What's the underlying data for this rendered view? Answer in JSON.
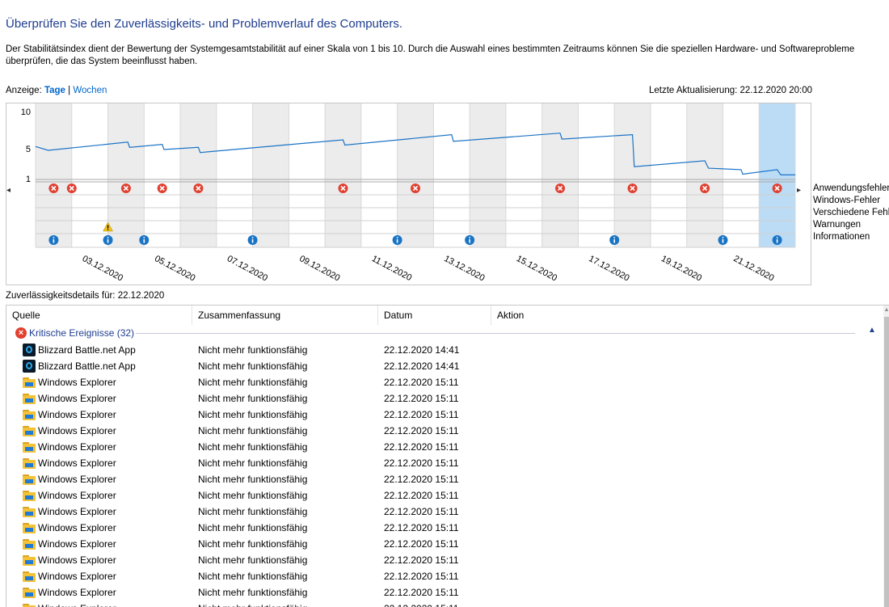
{
  "header": {
    "title": "Überprüfen Sie den Zuverlässigkeits- und Problemverlauf des Computers.",
    "description": "Der Stabilitätsindex dient der Bewertung der Systemgesamtstabilität auf einer Skala von 1 bis 10. Durch die Auswahl eines bestimmten Zeitraums können Sie die speziellen Hardware- und Softwareprobleme überprüfen, die das System beeinflusst haben."
  },
  "view": {
    "label": "Anzeige:",
    "days": "Tage",
    "separator": "|",
    "weeks": "Wochen",
    "last_update": "Letzte Aktualisierung: 22.12.2020 20:00"
  },
  "chart": {
    "nav_left": "◂",
    "nav_right": "▸",
    "y_ticks": [
      "10",
      "5",
      "1"
    ],
    "row_labels": [
      "Anwendungsfehler",
      "Windows-Fehler",
      "Verschiedene Fehler",
      "Warnungen",
      "Informationen"
    ],
    "date_labels": [
      "03.12.2020",
      "05.12.2020",
      "07.12.2020",
      "09.12.2020",
      "11.12.2020",
      "13.12.2020",
      "15.12.2020",
      "17.12.2020",
      "19.12.2020",
      "21.12.2020"
    ],
    "colors": {
      "line": "#1a73c6",
      "shaded": "#ececec",
      "selected": "#bcdcf5",
      "error": "#e04131",
      "warning": "#f2c11b",
      "info": "#1a74c5"
    }
  },
  "chart_data": {
    "type": "line",
    "title": "Stabilitätsindex",
    "x_days": [
      "02.12.2020",
      "03.12.2020",
      "04.12.2020",
      "05.12.2020",
      "06.12.2020",
      "07.12.2020",
      "08.12.2020",
      "09.12.2020",
      "10.12.2020",
      "11.12.2020",
      "12.12.2020",
      "13.12.2020",
      "14.12.2020",
      "15.12.2020",
      "16.12.2020",
      "17.12.2020",
      "18.12.2020",
      "19.12.2020",
      "20.12.2020",
      "21.12.2020",
      "22.12.2020"
    ],
    "ylim": [
      1,
      10
    ],
    "y_ticks": [
      10,
      5,
      1
    ],
    "stability_points": [
      {
        "day": 0.0,
        "value": 5.3
      },
      {
        "day": 0.35,
        "value": 4.8
      },
      {
        "day": 2.55,
        "value": 5.9
      },
      {
        "day": 2.6,
        "value": 5.2
      },
      {
        "day": 3.5,
        "value": 5.6
      },
      {
        "day": 3.55,
        "value": 4.9
      },
      {
        "day": 4.5,
        "value": 5.2
      },
      {
        "day": 4.55,
        "value": 4.5
      },
      {
        "day": 8.5,
        "value": 6.2
      },
      {
        "day": 8.55,
        "value": 5.5
      },
      {
        "day": 11.5,
        "value": 6.9
      },
      {
        "day": 11.55,
        "value": 6.0
      },
      {
        "day": 14.5,
        "value": 7.1
      },
      {
        "day": 14.55,
        "value": 6.3
      },
      {
        "day": 16.5,
        "value": 6.9
      },
      {
        "day": 16.55,
        "value": 2.6
      },
      {
        "day": 18.5,
        "value": 3.4
      },
      {
        "day": 18.6,
        "value": 2.4
      },
      {
        "day": 19.5,
        "value": 2.2
      },
      {
        "day": 19.55,
        "value": 1.6
      },
      {
        "day": 20.5,
        "value": 2.2
      },
      {
        "day": 20.6,
        "value": 1.5
      },
      {
        "day": 21.0,
        "value": 1.5
      }
    ],
    "shaded_days": [
      0,
      2,
      4,
      6,
      8,
      10,
      12,
      14,
      16,
      18
    ],
    "selected_day": 20,
    "events": {
      "application_errors": [
        0,
        0.5,
        2,
        3,
        4,
        8,
        10,
        14,
        16,
        18,
        20
      ],
      "windows_errors": [],
      "misc_errors": [],
      "warnings": [
        1.5
      ],
      "information": [
        0,
        1.5,
        2.5,
        5.5,
        9.5,
        11.5,
        15.5,
        18.5,
        20
      ]
    }
  },
  "details": {
    "label": "Zuverlässigkeitsdetails für: 22.12.2020",
    "columns": [
      "Quelle",
      "Zusammenfassung",
      "Datum",
      "Aktion"
    ],
    "sort_indicator": "^",
    "group_icon": "x-icon",
    "group_label": "Kritische Ereignisse (32)",
    "group_toggle": "▲",
    "rows": [
      {
        "source": "Blizzard Battle.net App",
        "summary": "Nicht mehr funktionsfähig",
        "date": "22.12.2020 14:41",
        "icon": "battlenet-icon"
      },
      {
        "source": "Blizzard Battle.net App",
        "summary": "Nicht mehr funktionsfähig",
        "date": "22.12.2020 14:41",
        "icon": "battlenet-icon"
      },
      {
        "source": "Windows Explorer",
        "summary": "Nicht mehr funktionsfähig",
        "date": "22.12.2020 15:11",
        "icon": "folder-icon"
      },
      {
        "source": "Windows Explorer",
        "summary": "Nicht mehr funktionsfähig",
        "date": "22.12.2020 15:11",
        "icon": "folder-icon"
      },
      {
        "source": "Windows Explorer",
        "summary": "Nicht mehr funktionsfähig",
        "date": "22.12.2020 15:11",
        "icon": "folder-icon"
      },
      {
        "source": "Windows Explorer",
        "summary": "Nicht mehr funktionsfähig",
        "date": "22.12.2020 15:11",
        "icon": "folder-icon"
      },
      {
        "source": "Windows Explorer",
        "summary": "Nicht mehr funktionsfähig",
        "date": "22.12.2020 15:11",
        "icon": "folder-icon"
      },
      {
        "source": "Windows Explorer",
        "summary": "Nicht mehr funktionsfähig",
        "date": "22.12.2020 15:11",
        "icon": "folder-icon"
      },
      {
        "source": "Windows Explorer",
        "summary": "Nicht mehr funktionsfähig",
        "date": "22.12.2020 15:11",
        "icon": "folder-icon"
      },
      {
        "source": "Windows Explorer",
        "summary": "Nicht mehr funktionsfähig",
        "date": "22.12.2020 15:11",
        "icon": "folder-icon"
      },
      {
        "source": "Windows Explorer",
        "summary": "Nicht mehr funktionsfähig",
        "date": "22.12.2020 15:11",
        "icon": "folder-icon"
      },
      {
        "source": "Windows Explorer",
        "summary": "Nicht mehr funktionsfähig",
        "date": "22.12.2020 15:11",
        "icon": "folder-icon"
      },
      {
        "source": "Windows Explorer",
        "summary": "Nicht mehr funktionsfähig",
        "date": "22.12.2020 15:11",
        "icon": "folder-icon"
      },
      {
        "source": "Windows Explorer",
        "summary": "Nicht mehr funktionsfähig",
        "date": "22.12.2020 15:11",
        "icon": "folder-icon"
      },
      {
        "source": "Windows Explorer",
        "summary": "Nicht mehr funktionsfähig",
        "date": "22.12.2020 15:11",
        "icon": "folder-icon"
      },
      {
        "source": "Windows Explorer",
        "summary": "Nicht mehr funktionsfähig",
        "date": "22.12.2020 15:11",
        "icon": "folder-icon"
      },
      {
        "source": "Windows Explorer",
        "summary": "Nicht mehr funktionsfähig",
        "date": "22.12.2020 15:11",
        "icon": "folder-icon"
      }
    ]
  }
}
